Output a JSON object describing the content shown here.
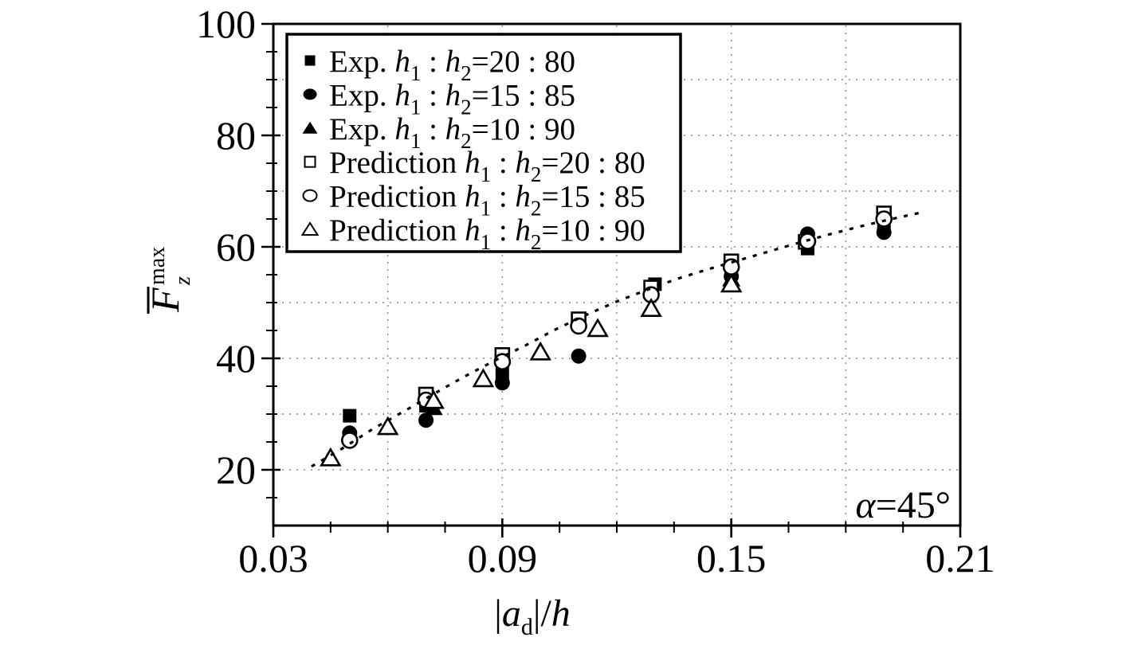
{
  "chart_data": {
    "type": "scatter",
    "title": "",
    "background": "#ffffff",
    "ink_color": "#000000",
    "grid_color": "#8a8a8a",
    "grid_style": "dotted",
    "legend_position": "upper-left",
    "x_axis": {
      "range": [
        0.03,
        0.21
      ],
      "tick_values": [
        0.03,
        0.09,
        0.15,
        0.21
      ],
      "tick_labels": [
        "0.03",
        "0.09",
        "0.15",
        "0.21"
      ],
      "minor_tick_values": [
        0.045,
        0.06,
        0.075,
        0.105,
        0.12,
        0.135,
        0.165,
        0.18,
        0.195
      ],
      "gridline_values": [
        0.06,
        0.09,
        0.12,
        0.15,
        0.18
      ],
      "label_text": "|a_d|/h",
      "label_segments": [
        {
          "t": "|",
          "f": "r"
        },
        {
          "t": "a",
          "f": "i"
        },
        {
          "t": "d",
          "f": "sub"
        },
        {
          "t": "|/",
          "f": "r"
        },
        {
          "t": "h",
          "f": "i"
        }
      ]
    },
    "y_axis": {
      "range": [
        10,
        100
      ],
      "tick_values": [
        20,
        40,
        60,
        80,
        100
      ],
      "tick_labels": [
        "20",
        "40",
        "60",
        "80",
        "100"
      ],
      "minor_tick_values": [
        15,
        25,
        30,
        35,
        45,
        50,
        55,
        65,
        70,
        75,
        85,
        90,
        95
      ],
      "gridline_values": [
        20,
        30,
        40,
        50,
        60,
        70,
        80,
        90
      ],
      "label_text": "F̄_z^max",
      "label_parts": {
        "base": "F",
        "overline": true,
        "sup": "max",
        "sub": "z"
      }
    },
    "annotation": {
      "text": "α=45°",
      "segments": [
        {
          "t": "α",
          "f": "i"
        },
        {
          "t": "=45°",
          "f": "r"
        }
      ]
    },
    "series": [
      {
        "id": "exp-20-80",
        "name": "Exp. h1:h2=20:80",
        "marker": "filled-square",
        "legend_segments": [
          {
            "t": "Exp. ",
            "f": "r"
          },
          {
            "t": "h",
            "f": "i"
          },
          {
            "t": "1",
            "f": "sub"
          },
          {
            "t": " : ",
            "f": "r"
          },
          {
            "t": "h",
            "f": "i"
          },
          {
            "t": "2",
            "f": "sub"
          },
          {
            "t": "=20 : 80",
            "f": "r"
          }
        ],
        "points": [
          [
            0.05,
            29.7
          ],
          [
            0.07,
            31.5
          ],
          [
            0.09,
            37.3
          ],
          [
            0.13,
            53.3
          ],
          [
            0.15,
            55.3
          ],
          [
            0.17,
            59.7
          ],
          [
            0.19,
            63.3
          ]
        ]
      },
      {
        "id": "exp-15-85",
        "name": "Exp. h1:h2=15:85",
        "marker": "filled-circle",
        "legend_segments": [
          {
            "t": "Exp. ",
            "f": "r"
          },
          {
            "t": "h",
            "f": "i"
          },
          {
            "t": "1",
            "f": "sub"
          },
          {
            "t": " : ",
            "f": "r"
          },
          {
            "t": "h",
            "f": "i"
          },
          {
            "t": "2",
            "f": "sub"
          },
          {
            "t": "=15 : 85",
            "f": "r"
          }
        ],
        "points": [
          [
            0.05,
            26.6
          ],
          [
            0.07,
            28.9
          ],
          [
            0.09,
            35.6
          ],
          [
            0.11,
            40.4
          ],
          [
            0.15,
            54.7
          ],
          [
            0.17,
            62.3
          ],
          [
            0.19,
            62.6
          ]
        ]
      },
      {
        "id": "exp-10-90",
        "name": "Exp. h1:h2=10:90",
        "marker": "filled-triangle",
        "legend_segments": [
          {
            "t": "Exp. ",
            "f": "r"
          },
          {
            "t": "h",
            "f": "i"
          },
          {
            "t": "1",
            "f": "sub"
          },
          {
            "t": " : ",
            "f": "r"
          },
          {
            "t": "h",
            "f": "i"
          },
          {
            "t": "2",
            "f": "sub"
          },
          {
            "t": "=10 : 90",
            "f": "r"
          }
        ],
        "points": [
          [
            0.072,
            31.1
          ],
          [
            0.129,
            49.1
          ],
          [
            0.15,
            54.2
          ]
        ]
      },
      {
        "id": "pred-20-80",
        "name": "Prediction h1:h2=20:80",
        "marker": "open-square",
        "legend_segments": [
          {
            "t": "Prediction ",
            "f": "r"
          },
          {
            "t": "h",
            "f": "i"
          },
          {
            "t": "1",
            "f": "sub"
          },
          {
            "t": " : ",
            "f": "r"
          },
          {
            "t": "h",
            "f": "i"
          },
          {
            "t": "2",
            "f": "sub"
          },
          {
            "t": "=20 : 80",
            "f": "r"
          }
        ],
        "points": [
          [
            0.07,
            33.5
          ],
          [
            0.09,
            40.6
          ],
          [
            0.11,
            47.0
          ],
          [
            0.129,
            52.7
          ],
          [
            0.15,
            57.4
          ],
          [
            0.1695,
            60.9
          ],
          [
            0.19,
            66.0
          ]
        ]
      },
      {
        "id": "pred-15-85",
        "name": "Prediction h1:h2=15:85",
        "marker": "open-circle",
        "legend_segments": [
          {
            "t": "Prediction ",
            "f": "r"
          },
          {
            "t": "h",
            "f": "i"
          },
          {
            "t": "1",
            "f": "sub"
          },
          {
            "t": " : ",
            "f": "r"
          },
          {
            "t": "h",
            "f": "i"
          },
          {
            "t": "2",
            "f": "sub"
          },
          {
            "t": "=15 : 85",
            "f": "r"
          }
        ],
        "points": [
          [
            0.05,
            25.3
          ],
          [
            0.07,
            32.5
          ],
          [
            0.09,
            39.4
          ],
          [
            0.11,
            45.8
          ],
          [
            0.129,
            51.4
          ],
          [
            0.15,
            56.4
          ],
          [
            0.17,
            61.0
          ],
          [
            0.19,
            65.0
          ]
        ]
      },
      {
        "id": "pred-10-90",
        "name": "Prediction h1:h2=10:90",
        "marker": "open-triangle",
        "legend_segments": [
          {
            "t": "Prediction ",
            "f": "r"
          },
          {
            "t": "h",
            "f": "i"
          },
          {
            "t": "1",
            "f": "sub"
          },
          {
            "t": " : ",
            "f": "r"
          },
          {
            "t": "h",
            "f": "i"
          },
          {
            "t": "2",
            "f": "sub"
          },
          {
            "t": "=10 : 90",
            "f": "r"
          }
        ],
        "points": [
          [
            0.045,
            22.1
          ],
          [
            0.06,
            27.7
          ],
          [
            0.072,
            32.4
          ],
          [
            0.085,
            36.3
          ],
          [
            0.1,
            41.1
          ],
          [
            0.115,
            45.3
          ],
          [
            0.129,
            48.9
          ],
          [
            0.15,
            53.3
          ]
        ]
      }
    ],
    "trend_line": {
      "style": "dotted",
      "points": [
        [
          0.04,
          20.6
        ],
        [
          0.048,
          23.8
        ],
        [
          0.056,
          27.3
        ],
        [
          0.064,
          30.4
        ],
        [
          0.072,
          33.6
        ],
        [
          0.08,
          36.7
        ],
        [
          0.088,
          39.6
        ],
        [
          0.096,
          42.3
        ],
        [
          0.104,
          45.2
        ],
        [
          0.112,
          47.8
        ],
        [
          0.12,
          50.2
        ],
        [
          0.128,
          52.3
        ],
        [
          0.136,
          54.3
        ],
        [
          0.144,
          56.0
        ],
        [
          0.152,
          57.6
        ],
        [
          0.16,
          59.2
        ],
        [
          0.168,
          60.8
        ],
        [
          0.176,
          62.3
        ],
        [
          0.184,
          63.7
        ],
        [
          0.192,
          65.0
        ],
        [
          0.2,
          66.2
        ]
      ]
    }
  }
}
